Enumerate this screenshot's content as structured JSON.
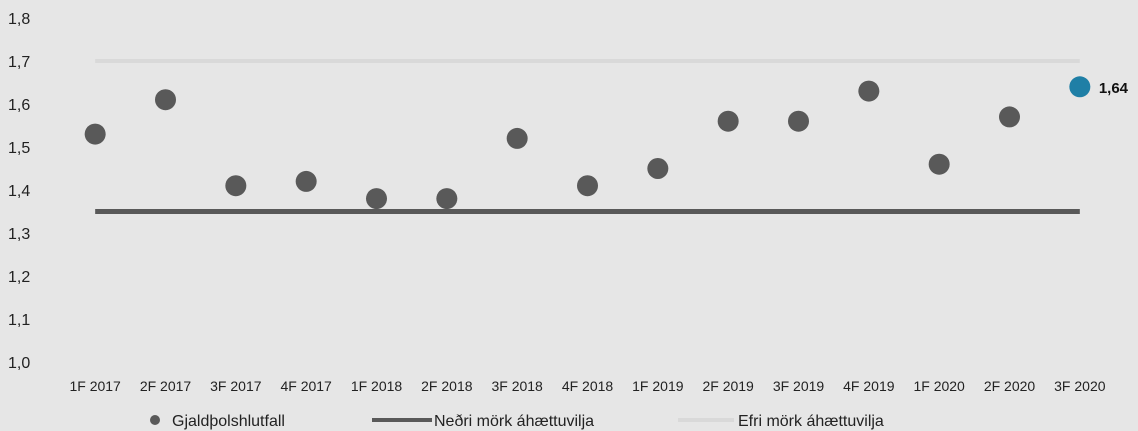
{
  "chart_data": {
    "type": "scatter",
    "categories": [
      "1F 2017",
      "2F 2017",
      "3F 2017",
      "4F 2017",
      "1F 2018",
      "2F 2018",
      "3F 2018",
      "4F 2018",
      "1F 2019",
      "2F 2019",
      "3F 2019",
      "4F 2019",
      "1F 2020",
      "2F 2020",
      "3F 2020"
    ],
    "series": [
      {
        "name": "Gjaldþolshlutfall",
        "type": "scatter",
        "values": [
          1.53,
          1.61,
          1.41,
          1.42,
          1.38,
          1.38,
          1.52,
          1.41,
          1.45,
          1.56,
          1.56,
          1.63,
          1.46,
          1.57,
          1.64
        ],
        "color": "#595959",
        "highlight_color": "#1f7fa6"
      },
      {
        "name": "Neðri mörk áhættuvilja",
        "type": "line",
        "values": [
          1.35,
          1.35,
          1.35,
          1.35,
          1.35,
          1.35,
          1.35,
          1.35,
          1.35,
          1.35,
          1.35,
          1.35,
          1.35,
          1.35,
          1.35
        ],
        "color": "#595959"
      },
      {
        "name": "Efri mörk áhættuvilja",
        "type": "line",
        "values": [
          1.7,
          1.7,
          1.7,
          1.7,
          1.7,
          1.7,
          1.7,
          1.7,
          1.7,
          1.7,
          1.7,
          1.7,
          1.7,
          1.7,
          1.7
        ],
        "color": "#d9d9d9"
      }
    ],
    "data_labels": [
      {
        "category": "3F 2020",
        "text": "1,64"
      }
    ],
    "ylim": [
      1.0,
      1.8
    ],
    "yticks": [
      "1,0",
      "1,1",
      "1,2",
      "1,3",
      "1,4",
      "1,5",
      "1,6",
      "1,7",
      "1,8"
    ],
    "ytick_values": [
      1.0,
      1.1,
      1.2,
      1.3,
      1.4,
      1.5,
      1.6,
      1.7,
      1.8
    ],
    "grid": false,
    "legend": "bottom",
    "title": "",
    "xlabel": "",
    "ylabel": ""
  }
}
